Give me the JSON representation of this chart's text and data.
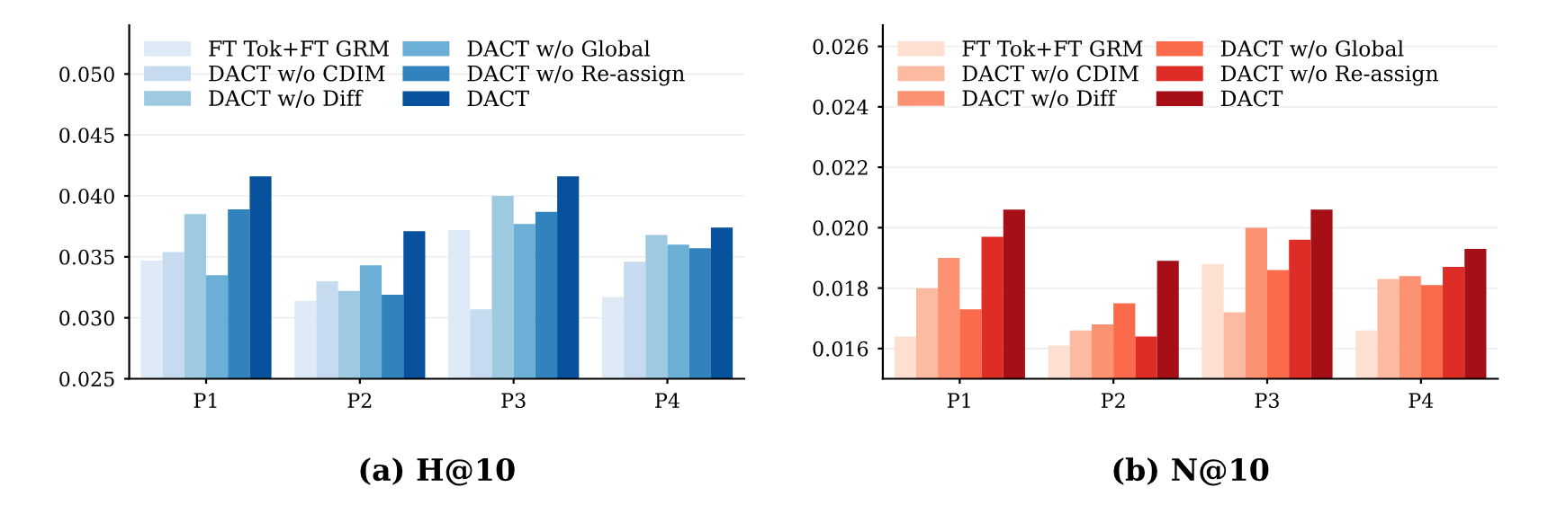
{
  "chart_data": [
    {
      "type": "bar",
      "title": "(a) H@10",
      "categories": [
        "P1",
        "P2",
        "P3",
        "P4"
      ],
      "ylim": [
        0.025,
        0.054
      ],
      "yticks": [
        {
          "value": 0.025,
          "label": "0.025"
        },
        {
          "value": 0.03,
          "label": "0.030"
        },
        {
          "value": 0.035,
          "label": "0.035"
        },
        {
          "value": 0.04,
          "label": "0.040"
        },
        {
          "value": 0.045,
          "label": "0.045"
        },
        {
          "value": 0.05,
          "label": "0.050"
        }
      ],
      "grid": "y",
      "legend": "top left",
      "series": [
        {
          "name": "FT Tok+FT GRM",
          "color": "#deebf7",
          "values": [
            0.0347,
            0.0314,
            0.0372,
            0.0317
          ]
        },
        {
          "name": "DACT w/o CDIM",
          "color": "#c6dbef",
          "values": [
            0.0354,
            0.033,
            0.0307,
            0.0346
          ]
        },
        {
          "name": "DACT w/o Diff",
          "color": "#9ecae1",
          "values": [
            0.0385,
            0.0322,
            0.04,
            0.0368
          ]
        },
        {
          "name": "DACT w/o Global",
          "color": "#6baed6",
          "values": [
            0.0335,
            0.0343,
            0.0377,
            0.036
          ]
        },
        {
          "name": "DACT w/o Re-assign",
          "color": "#3182bd",
          "values": [
            0.0389,
            0.0319,
            0.0387,
            0.0357
          ]
        },
        {
          "name": "DACT",
          "color": "#08519c",
          "values": [
            0.0416,
            0.0371,
            0.0416,
            0.0374
          ]
        }
      ]
    },
    {
      "type": "bar",
      "title": "(b) N@10",
      "categories": [
        "P1",
        "P2",
        "P3",
        "P4"
      ],
      "ylim": [
        0.015,
        0.0267
      ],
      "yticks": [
        {
          "value": 0.016,
          "label": "0.016"
        },
        {
          "value": 0.018,
          "label": "0.018"
        },
        {
          "value": 0.02,
          "label": "0.020"
        },
        {
          "value": 0.022,
          "label": "0.022"
        },
        {
          "value": 0.024,
          "label": "0.024"
        },
        {
          "value": 0.026,
          "label": "0.026"
        }
      ],
      "grid": "y",
      "legend": "top left",
      "series": [
        {
          "name": "FT Tok+FT GRM",
          "color": "#fee0d2",
          "values": [
            0.0164,
            0.0161,
            0.0188,
            0.0166
          ]
        },
        {
          "name": "DACT w/o CDIM",
          "color": "#fcbba1",
          "values": [
            0.018,
            0.0166,
            0.0172,
            0.0183
          ]
        },
        {
          "name": "DACT w/o Diff",
          "color": "#fc9272",
          "values": [
            0.019,
            0.0168,
            0.02,
            0.0184
          ]
        },
        {
          "name": "DACT w/o Global",
          "color": "#fb6a4a",
          "values": [
            0.0173,
            0.0175,
            0.0186,
            0.0181
          ]
        },
        {
          "name": "DACT w/o Re-assign",
          "color": "#de2d26",
          "values": [
            0.0197,
            0.0164,
            0.0196,
            0.0187
          ]
        },
        {
          "name": "DACT",
          "color": "#a50f15",
          "values": [
            0.0206,
            0.0189,
            0.0206,
            0.0193
          ]
        }
      ]
    }
  ]
}
